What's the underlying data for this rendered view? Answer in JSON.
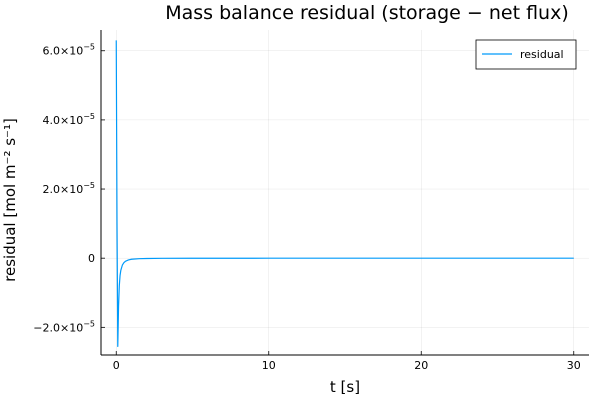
{
  "chart_data": {
    "type": "line",
    "title": "Mass balance residual (storage − net flux)",
    "xlabel": "t [s]",
    "ylabel": "residual [mol m⁻² s⁻¹]",
    "xlim": [
      -1,
      31
    ],
    "ylim": [
      -2.8e-05,
      6.6e-05
    ],
    "x_ticks": [
      0,
      10,
      20,
      30
    ],
    "y_ticks": [
      {
        "value": -2e-05,
        "mantissa": "−2.0×10",
        "exp": "−5"
      },
      {
        "value": 0,
        "mantissa": "0",
        "exp": ""
      },
      {
        "value": 2e-05,
        "mantissa": "2.0×10",
        "exp": "−5"
      },
      {
        "value": 4e-05,
        "mantissa": "4.0×10",
        "exp": "−5"
      },
      {
        "value": 6e-05,
        "mantissa": "6.0×10",
        "exp": "−5"
      }
    ],
    "grid": true,
    "legend_position": "top-right",
    "series": [
      {
        "name": "residual",
        "color": "#009AFA",
        "x": [
          0.0,
          0.05,
          0.1,
          0.15,
          0.2,
          0.25,
          0.3,
          0.4,
          0.5,
          0.6,
          0.8,
          1.0,
          1.5,
          2.0,
          3.0,
          5.0,
          10.0,
          15.0,
          20.0,
          25.0,
          30.0
        ],
        "y": [
          6.3e-05,
          1e-05,
          -2.55e-05,
          -1.4e-05,
          -8e-06,
          -5e-06,
          -3.5e-06,
          -2e-06,
          -1.3e-06,
          -9e-07,
          -5e-07,
          -3e-07,
          -1.5e-07,
          -8e-08,
          -4e-08,
          -1.5e-08,
          -5e-09,
          -2e-09,
          -1e-09,
          -5e-10,
          -2e-10
        ]
      }
    ]
  }
}
